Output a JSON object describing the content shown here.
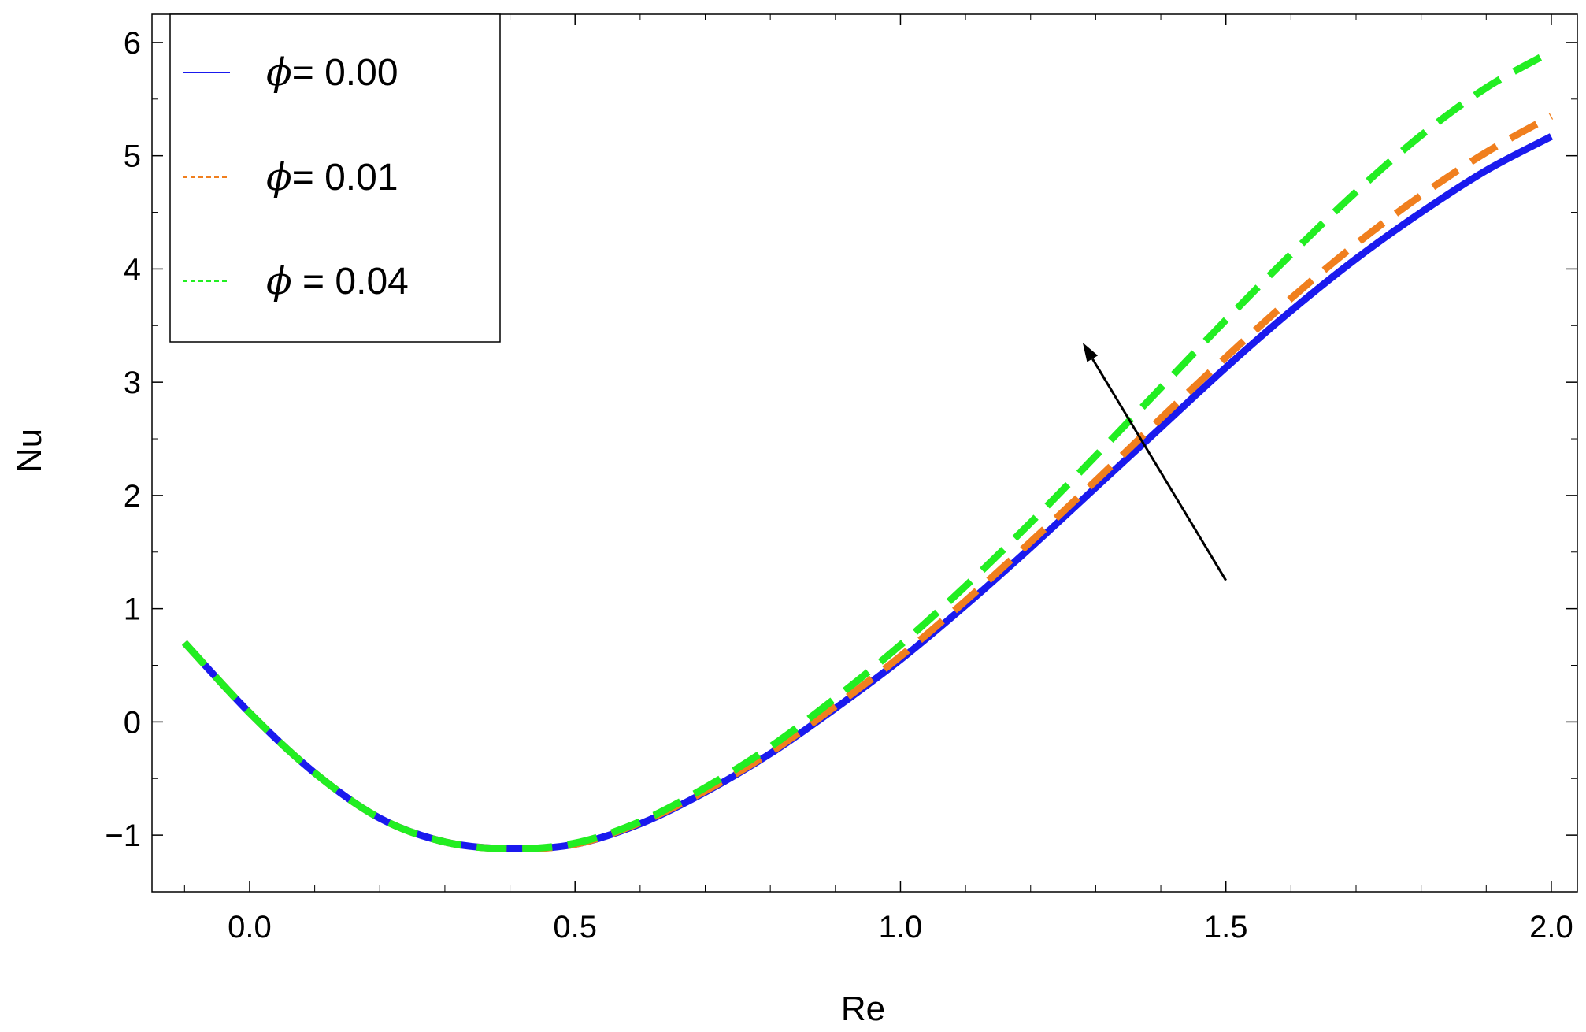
{
  "chart_data": {
    "type": "line",
    "title": "",
    "xlabel": "Re",
    "ylabel": "Nu",
    "xlim": [
      -0.15,
      2.04
    ],
    "ylim": [
      -1.5,
      6.25
    ],
    "grid": false,
    "legend_position": "top-left",
    "x_ticks": [
      {
        "value": 0.0,
        "label": "0.0"
      },
      {
        "value": 0.5,
        "label": "0.5"
      },
      {
        "value": 1.0,
        "label": "1.0"
      },
      {
        "value": 1.5,
        "label": "1.5"
      },
      {
        "value": 2.0,
        "label": "2.0"
      }
    ],
    "y_ticks": [
      {
        "value": -1,
        "label": "−1"
      },
      {
        "value": 0,
        "label": "0"
      },
      {
        "value": 1,
        "label": "1"
      },
      {
        "value": 2,
        "label": "2"
      },
      {
        "value": 3,
        "label": "3"
      },
      {
        "value": 4,
        "label": "4"
      },
      {
        "value": 5,
        "label": "5"
      },
      {
        "value": 6,
        "label": "6"
      }
    ],
    "series": [
      {
        "name": "ϕ= 0.00",
        "legend_value": "= 0.00",
        "color": "#1a1aee",
        "style": "solid",
        "x": [
          -0.1,
          0.0,
          0.1,
          0.2,
          0.3,
          0.4,
          0.5,
          0.6,
          0.7,
          0.8,
          0.9,
          1.0,
          1.1,
          1.2,
          1.3,
          1.4,
          1.5,
          1.6,
          1.7,
          1.8,
          1.9,
          2.0
        ],
        "y": [
          0.7,
          0.08,
          -0.45,
          -0.85,
          -1.06,
          -1.12,
          -1.08,
          -0.9,
          -0.62,
          -0.28,
          0.12,
          0.55,
          1.03,
          1.54,
          2.07,
          2.6,
          3.13,
          3.63,
          4.09,
          4.5,
          4.87,
          5.17
        ]
      },
      {
        "name": "ϕ= 0.01",
        "legend_value": "= 0.01",
        "color": "#f07f1e",
        "style": "dashed",
        "x": [
          -0.1,
          0.0,
          0.1,
          0.2,
          0.3,
          0.4,
          0.5,
          0.6,
          0.7,
          0.8,
          0.9,
          1.0,
          1.1,
          1.2,
          1.3,
          1.4,
          1.5,
          1.6,
          1.7,
          1.8,
          1.9,
          2.0
        ],
        "y": [
          0.7,
          0.08,
          -0.45,
          -0.85,
          -1.06,
          -1.12,
          -1.08,
          -0.89,
          -0.61,
          -0.27,
          0.14,
          0.58,
          1.07,
          1.59,
          2.13,
          2.68,
          3.22,
          3.74,
          4.22,
          4.65,
          5.03,
          5.35
        ]
      },
      {
        "name": "ϕ = 0.04",
        "legend_value": " = 0.04",
        "color": "#22ee22",
        "style": "dashed",
        "x": [
          -0.1,
          0.0,
          0.1,
          0.2,
          0.3,
          0.4,
          0.5,
          0.6,
          0.7,
          0.8,
          0.9,
          1.0,
          1.1,
          1.2,
          1.3,
          1.4,
          1.5,
          1.6,
          1.7,
          1.8,
          1.9,
          2.0
        ],
        "y": [
          0.7,
          0.08,
          -0.45,
          -0.85,
          -1.06,
          -1.12,
          -1.07,
          -0.88,
          -0.58,
          -0.22,
          0.21,
          0.68,
          1.2,
          1.76,
          2.35,
          2.95,
          3.55,
          4.13,
          4.68,
          5.18,
          5.6,
          5.92
        ]
      }
    ],
    "annotations": [
      {
        "type": "arrow",
        "from": [
          1.5,
          1.25
        ],
        "to": [
          1.28,
          3.35
        ],
        "color": "#000000"
      }
    ]
  }
}
